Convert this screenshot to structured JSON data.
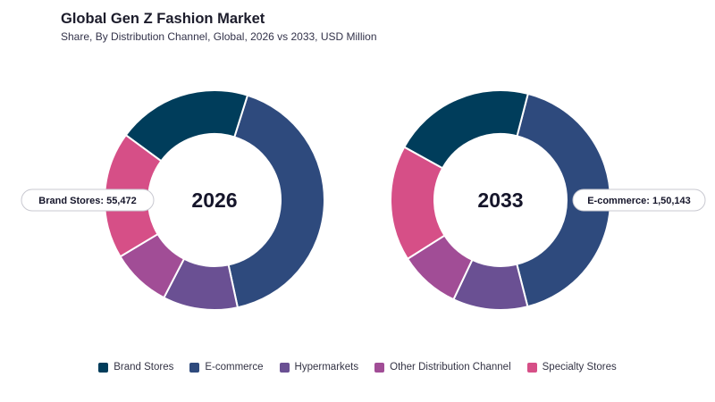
{
  "header": {
    "title": "Global Gen Z Fashion Market",
    "subtitle": "Share, By Distribution Channel, Global, 2026 vs 2033, USD Million"
  },
  "colors": {
    "Brand Stores": "#003d5b",
    "E-commerce": "#2e4a7d",
    "Hypermarkets": "#6a5093",
    "Other Distribution Channel": "#a14d96",
    "Specialty Stores": "#d64f87"
  },
  "chart_data": [
    {
      "type": "pie",
      "center_label": "2026",
      "tooltip": {
        "category": "Brand Stores",
        "text": "Brand Stores: 55,472"
      },
      "slices": [
        {
          "name": "E-commerce",
          "value": 38
        },
        {
          "name": "Hypermarkets",
          "value": 10
        },
        {
          "name": "Other Distribution Channel",
          "value": 8
        },
        {
          "name": "Specialty Stores",
          "value": 17
        },
        {
          "name": "Brand Stores",
          "value": 18
        }
      ]
    },
    {
      "type": "pie",
      "center_label": "2033",
      "tooltip": {
        "category": "E-commerce",
        "text": "E-commerce: 1,50,143"
      },
      "slices": [
        {
          "name": "E-commerce",
          "value": 42
        },
        {
          "name": "Hypermarkets",
          "value": 11
        },
        {
          "name": "Other Distribution Channel",
          "value": 9
        },
        {
          "name": "Specialty Stores",
          "value": 17
        },
        {
          "name": "Brand Stores",
          "value": 21
        }
      ]
    }
  ],
  "legend": [
    "Brand Stores",
    "E-commerce",
    "Hypermarkets",
    "Other Distribution Channel",
    "Specialty Stores"
  ]
}
